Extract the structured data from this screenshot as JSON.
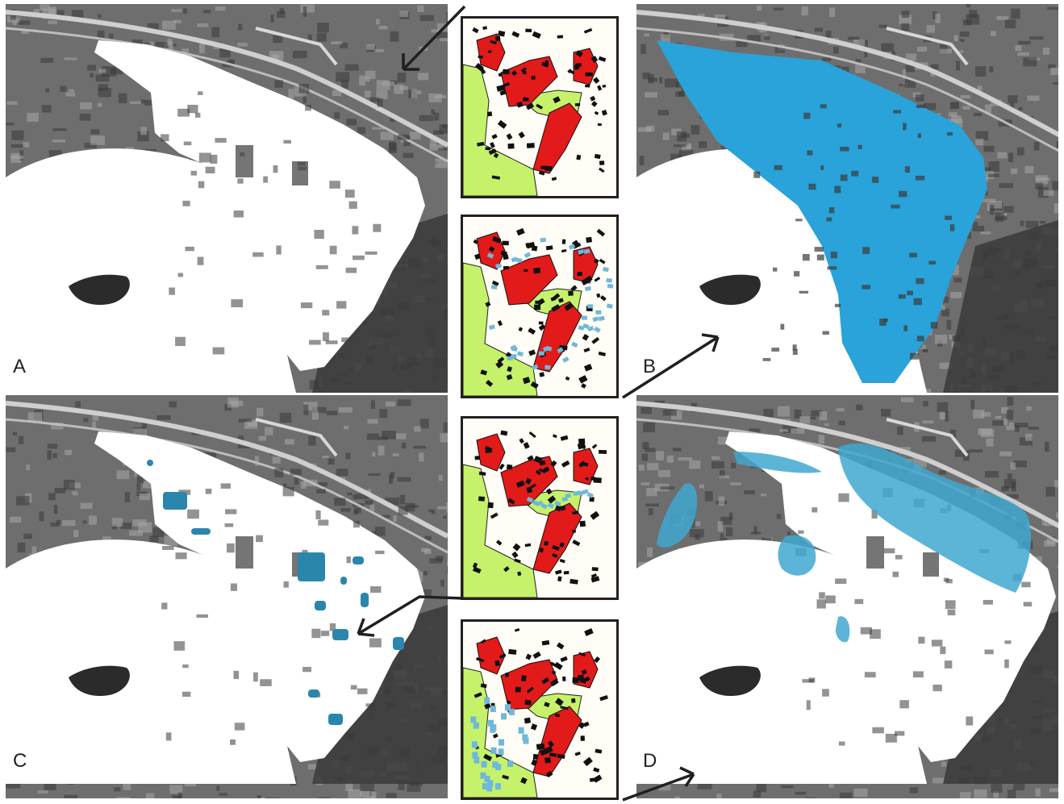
{
  "panels": [
    {
      "id": "A",
      "label": "A",
      "overlay": "none"
    },
    {
      "id": "B",
      "label": "B",
      "overlay": "full-blue"
    },
    {
      "id": "C",
      "label": "C",
      "overlay": "small-patches"
    },
    {
      "id": "D",
      "label": "D",
      "overlay": "large-zones"
    }
  ],
  "insets": [
    {
      "id": "inset-1",
      "variant": "base"
    },
    {
      "id": "inset-2",
      "variant": "blue-ring"
    },
    {
      "id": "inset-3",
      "variant": "blue-infill"
    },
    {
      "id": "inset-4",
      "variant": "blue-outside"
    }
  ],
  "colors": {
    "aerial_dark": "#3a3a3a",
    "aerial_mid": "#6e6e6e",
    "aerial_light": "#a8a8a8",
    "water": "#ffffff",
    "footprint_white": "#ffffff",
    "blue_overlay": "#29a3d9",
    "blue_patch": "#2a86ad",
    "blue_zone": "#3fa8cf",
    "inset_red": "#e21a1a",
    "inset_green": "#c5f26a",
    "inset_black": "#111111",
    "inset_blue": "#6fb8da",
    "arrow": "#231f20"
  }
}
